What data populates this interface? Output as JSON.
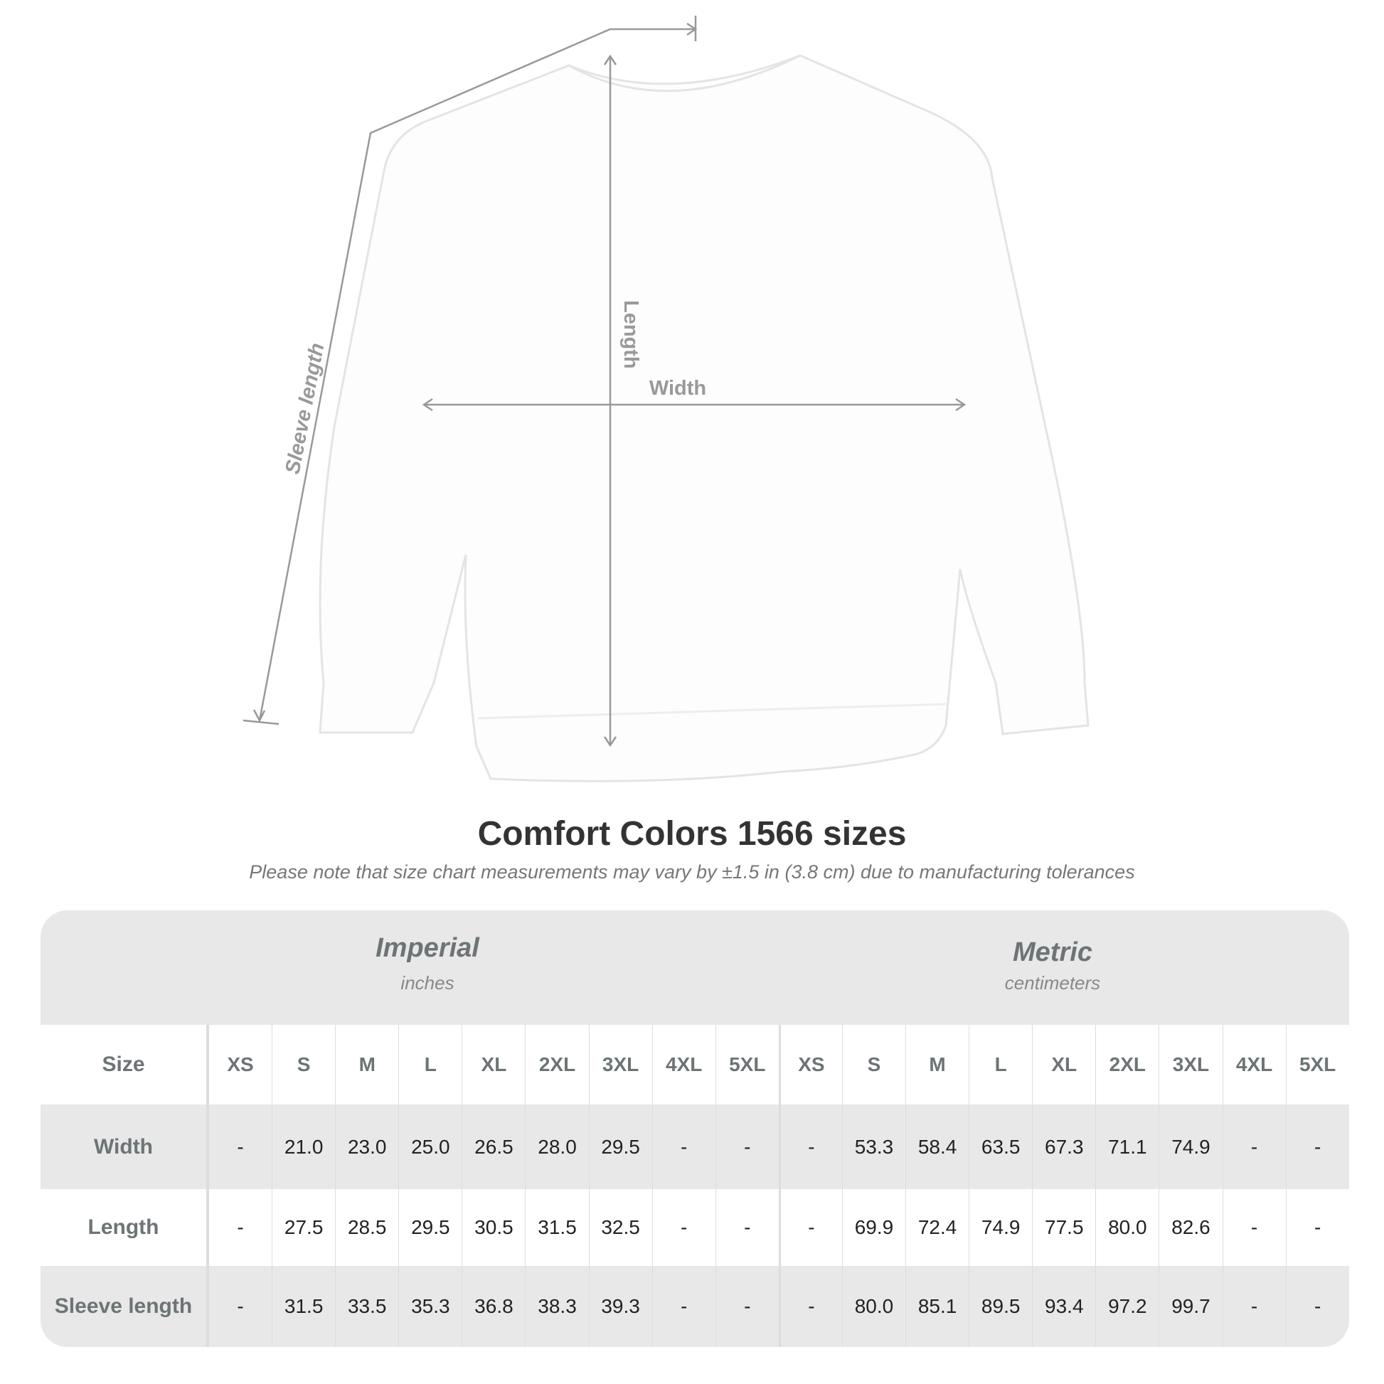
{
  "diagram": {
    "length_label": "Length",
    "width_label": "Width",
    "sleeve_label": "Sleeve length"
  },
  "title": "Comfort Colors 1566 sizes",
  "subtitle": "Please note that size chart measurements may vary by ±1.5 in (3.8 cm) due to manufacturing tolerances",
  "chart_data": {
    "type": "table",
    "groups": [
      {
        "name": "Imperial",
        "unit": "inches"
      },
      {
        "name": "Metric",
        "unit": "centimeters"
      }
    ],
    "header_label": "Size",
    "sizes": [
      "XS",
      "S",
      "M",
      "L",
      "XL",
      "2XL",
      "3XL",
      "4XL",
      "5XL"
    ],
    "rows": [
      {
        "label": "Width",
        "imperial": [
          "-",
          "21.0",
          "23.0",
          "25.0",
          "26.5",
          "28.0",
          "29.5",
          "-",
          "-"
        ],
        "metric": [
          "-",
          "53.3",
          "58.4",
          "63.5",
          "67.3",
          "71.1",
          "74.9",
          "-",
          "-"
        ]
      },
      {
        "label": "Length",
        "imperial": [
          "-",
          "27.5",
          "28.5",
          "29.5",
          "30.5",
          "31.5",
          "32.5",
          "-",
          "-"
        ],
        "metric": [
          "-",
          "69.9",
          "72.4",
          "74.9",
          "77.5",
          "80.0",
          "82.6",
          "-",
          "-"
        ]
      },
      {
        "label": "Sleeve length",
        "imperial": [
          "-",
          "31.5",
          "33.5",
          "35.3",
          "36.8",
          "38.3",
          "39.3",
          "-",
          "-"
        ],
        "metric": [
          "-",
          "80.0",
          "85.1",
          "89.5",
          "93.4",
          "97.2",
          "99.7",
          "-",
          "-"
        ]
      }
    ]
  },
  "colors": {
    "band": "#e8e8e8",
    "label": "#6d7475",
    "line": "#999999"
  }
}
